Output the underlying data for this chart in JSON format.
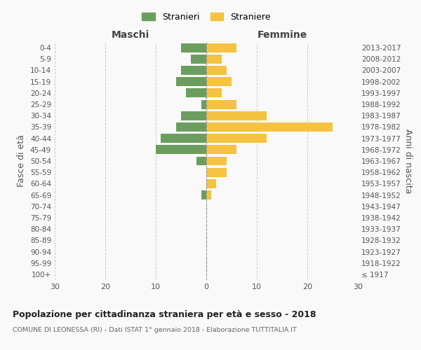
{
  "age_groups": [
    "100+",
    "95-99",
    "90-94",
    "85-89",
    "80-84",
    "75-79",
    "70-74",
    "65-69",
    "60-64",
    "55-59",
    "50-54",
    "45-49",
    "40-44",
    "35-39",
    "30-34",
    "25-29",
    "20-24",
    "15-19",
    "10-14",
    "5-9",
    "0-4"
  ],
  "birth_years": [
    "≤ 1917",
    "1918-1922",
    "1923-1927",
    "1928-1932",
    "1933-1937",
    "1938-1942",
    "1943-1947",
    "1948-1952",
    "1953-1957",
    "1958-1962",
    "1963-1967",
    "1968-1972",
    "1973-1977",
    "1978-1982",
    "1983-1987",
    "1988-1992",
    "1993-1997",
    "1998-2002",
    "2003-2007",
    "2008-2012",
    "2013-2017"
  ],
  "males": [
    0,
    0,
    0,
    0,
    0,
    0,
    0,
    1,
    0,
    0,
    2,
    10,
    9,
    6,
    5,
    1,
    4,
    6,
    5,
    3,
    5
  ],
  "females": [
    0,
    0,
    0,
    0,
    0,
    0,
    0,
    1,
    2,
    4,
    4,
    6,
    12,
    25,
    12,
    6,
    3,
    5,
    4,
    3,
    6
  ],
  "male_color": "#6b9e5e",
  "female_color": "#f5c242",
  "background_color": "#f9f9f9",
  "grid_color": "#cccccc",
  "title": "Popolazione per cittadinanza straniera per età e sesso - 2018",
  "subtitle": "COMUNE DI LEONESSA (RI) - Dati ISTAT 1° gennaio 2018 - Elaborazione TUTTITALIA.IT",
  "xlabel_left": "Maschi",
  "xlabel_right": "Femmine",
  "ylabel_left": "Fasce di età",
  "ylabel_right": "Anni di nascita",
  "legend_stranieri": "Stranieri",
  "legend_straniere": "Straniere",
  "xlim": 30,
  "bar_height": 0.8
}
